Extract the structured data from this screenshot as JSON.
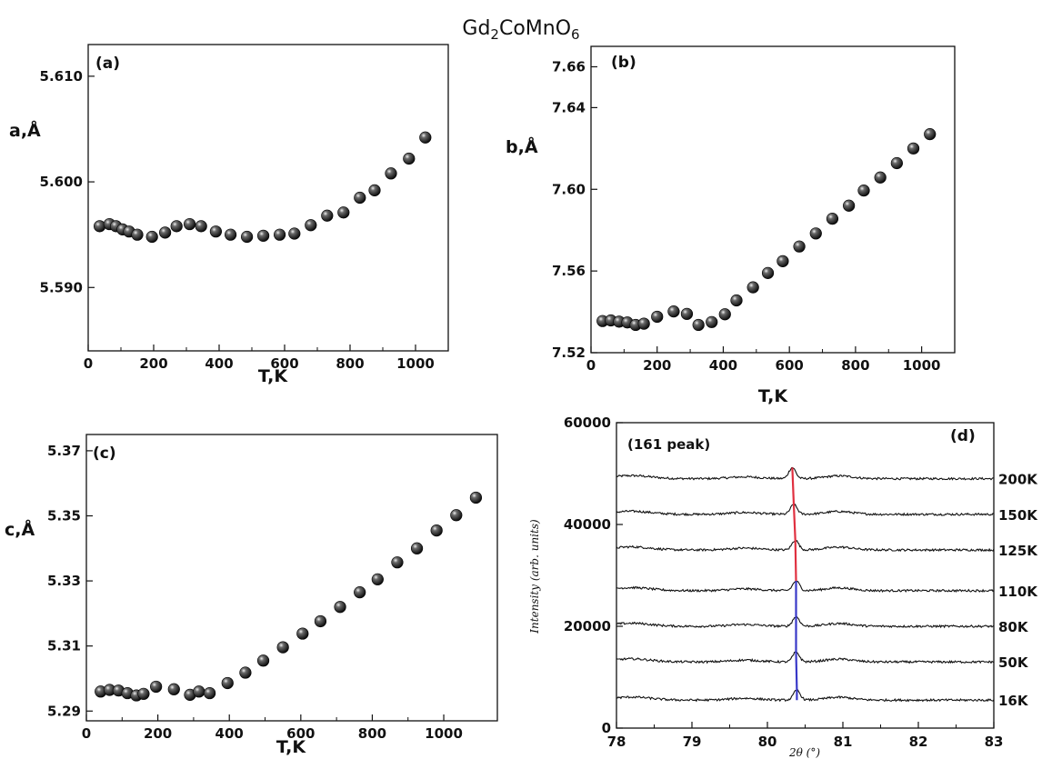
{
  "figure_title": "Gd",
  "figure_title_sub1": "2",
  "figure_title_mid": "CoMnO",
  "figure_title_sub2": "6",
  "chart_data": [
    {
      "type": "scatter",
      "panel_label": "(a)",
      "ylabel": "a,Å",
      "xlabel": "T,K",
      "xlim": [
        0,
        1100
      ],
      "ylim": [
        5.584,
        5.613
      ],
      "xticks": [
        "0",
        "200",
        "400",
        "600",
        "800",
        "1000"
      ],
      "yticks": [
        "5.590",
        "5.600",
        "5.610"
      ],
      "marker_color": "#1a1a1a",
      "x": [
        35,
        65,
        85,
        105,
        125,
        150,
        195,
        235,
        270,
        310,
        345,
        390,
        435,
        485,
        535,
        585,
        630,
        680,
        730,
        780,
        830,
        875,
        925,
        980,
        1030
      ],
      "y": [
        5.5958,
        5.596,
        5.5958,
        5.5955,
        5.5953,
        5.595,
        5.5948,
        5.5952,
        5.5958,
        5.596,
        5.5958,
        5.5953,
        5.595,
        5.5948,
        5.5949,
        5.595,
        5.5951,
        5.5959,
        5.5968,
        5.5971,
        5.5985,
        5.5992,
        5.6008,
        5.6022,
        5.6042
      ]
    },
    {
      "type": "scatter",
      "panel_label": "(b)",
      "ylabel": "b,Å",
      "xlabel": "T,K",
      "xlim": [
        0,
        1100
      ],
      "ylim": [
        7.52,
        7.67
      ],
      "xticks": [
        "0",
        "200",
        "400",
        "600",
        "800",
        "1000"
      ],
      "yticks": [
        "7.52",
        "7.56",
        "7.60",
        "7.64",
        "7.66"
      ],
      "marker_color": "#1a1a1a",
      "x": [
        35,
        60,
        85,
        110,
        135,
        160,
        200,
        250,
        290,
        325,
        365,
        405,
        440,
        490,
        535,
        580,
        630,
        680,
        730,
        780,
        825,
        875,
        925,
        975,
        1025
      ],
      "y": [
        7.5355,
        7.5358,
        7.5352,
        7.5348,
        7.5336,
        7.5342,
        7.5376,
        7.5402,
        7.539,
        7.5336,
        7.535,
        7.5388,
        7.5456,
        7.552,
        7.559,
        7.5648,
        7.572,
        7.5784,
        7.5856,
        7.592,
        7.5994,
        7.6058,
        7.6128,
        7.62,
        7.627
      ]
    },
    {
      "type": "scatter",
      "panel_label": "(c)",
      "ylabel": "c,Å",
      "xlabel": "T,K",
      "xlim": [
        0,
        1150
      ],
      "ylim": [
        5.287,
        5.375
      ],
      "xticks": [
        "0",
        "200",
        "400",
        "600",
        "800",
        "1000"
      ],
      "yticks": [
        "5.29",
        "5.31",
        "5.33",
        "5.35",
        "5.37"
      ],
      "marker_color": "#1a1a1a",
      "x": [
        40,
        65,
        90,
        115,
        140,
        160,
        195,
        245,
        290,
        315,
        345,
        395,
        445,
        495,
        550,
        605,
        655,
        710,
        765,
        815,
        870,
        925,
        980,
        1035,
        1090
      ],
      "y": [
        5.296,
        5.2965,
        5.2963,
        5.2955,
        5.2948,
        5.2953,
        5.2975,
        5.2967,
        5.295,
        5.296,
        5.2955,
        5.2986,
        5.3018,
        5.3055,
        5.3096,
        5.3138,
        5.3176,
        5.322,
        5.3265,
        5.3305,
        5.3357,
        5.34,
        5.3455,
        5.3502,
        5.3556
      ]
    },
    {
      "type": "line",
      "panel_label": "(d)",
      "annotation": "(161 peak)",
      "ylabel": "Intensity (arb. units)",
      "xlabel": "2θ (°)",
      "xlim": [
        78,
        83
      ],
      "ylim": [
        0,
        60000
      ],
      "xticks": [
        "78",
        "79",
        "80",
        "81",
        "82",
        "83"
      ],
      "yticks": [
        "0",
        "20000",
        "40000",
        "60000"
      ],
      "peak_line_colors": {
        "upper": "#e03040",
        "lower": "#3838c8"
      },
      "series": [
        {
          "name": "200K",
          "baseline": 49000,
          "peak_x": 80.33,
          "peak_height": 2200
        },
        {
          "name": "150K",
          "baseline": 42000,
          "peak_x": 80.35,
          "peak_height": 1900
        },
        {
          "name": "125K",
          "baseline": 35000,
          "peak_x": 80.37,
          "peak_height": 1900
        },
        {
          "name": "110K",
          "baseline": 27000,
          "peak_x": 80.38,
          "peak_height": 1900
        },
        {
          "name": "80K",
          "baseline": 20000,
          "peak_x": 80.38,
          "peak_height": 1900
        },
        {
          "name": "50K",
          "baseline": 13000,
          "peak_x": 80.38,
          "peak_height": 1900
        },
        {
          "name": "16K",
          "baseline": 5500,
          "peak_x": 80.39,
          "peak_height": 1900
        }
      ]
    }
  ]
}
